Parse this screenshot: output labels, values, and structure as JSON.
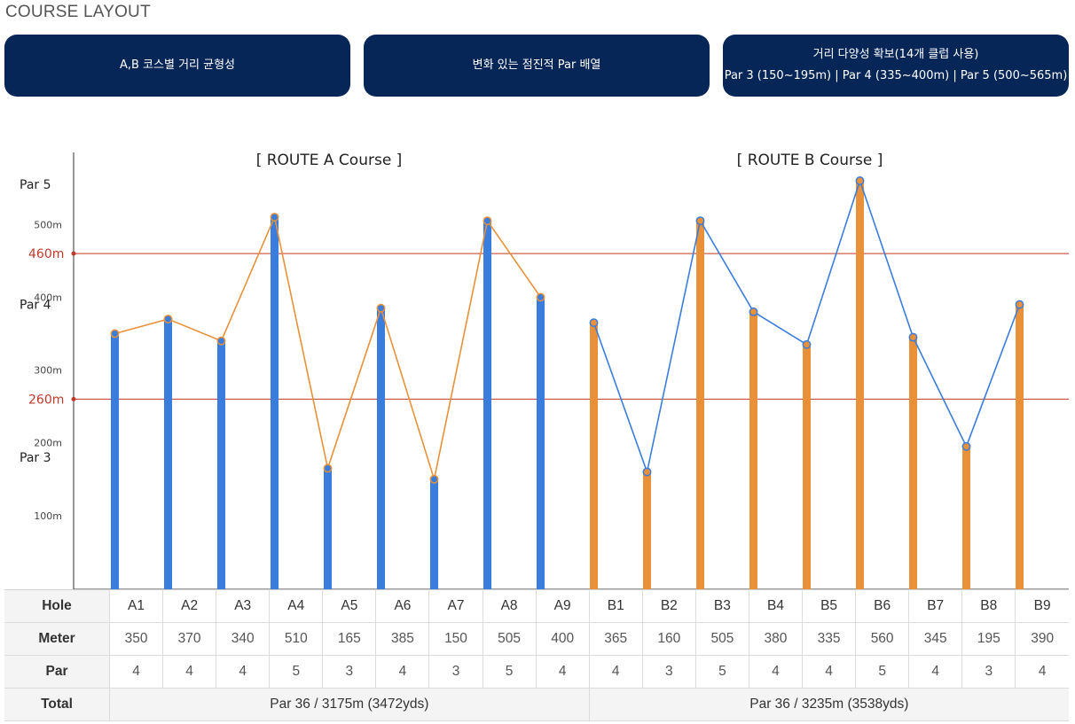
{
  "page_title": "COURSE LAYOUT",
  "cards": [
    {
      "lines": [
        "A,B 코스별 거리 균형성"
      ]
    },
    {
      "lines": [
        "변화 있는 점진적 Par 배열"
      ]
    },
    {
      "lines": [
        "거리 다양성 확보(14개 클럽 사용)",
        "Par 3 (150~195m) | Par 4 (335~400m) | Par 5 (500~565m)"
      ]
    }
  ],
  "colors": {
    "navy": "#072658",
    "blue": "#3b7ddd",
    "orange": "#e8913a",
    "ref_line": "#c0392b"
  },
  "chart_data": {
    "type": "bar",
    "titles": [
      "[ ROUTE A Course ]",
      "[ ROUTE B Course ]"
    ],
    "categories": [
      "A1",
      "A2",
      "A3",
      "A4",
      "A5",
      "A6",
      "A7",
      "A8",
      "A9",
      "B1",
      "B2",
      "B3",
      "B4",
      "B5",
      "B6",
      "B7",
      "B8",
      "B9"
    ],
    "series": [
      {
        "values": [
          350,
          370,
          340,
          510,
          165,
          385,
          150,
          505,
          400,
          null,
          null,
          null,
          null,
          null,
          null,
          null,
          null,
          null
        ],
        "bar_color": "#3b7ddd",
        "line_color": "#e8913a"
      },
      {
        "values": [
          null,
          null,
          null,
          null,
          null,
          null,
          null,
          null,
          null,
          365,
          160,
          505,
          380,
          335,
          560,
          345,
          195,
          390
        ],
        "bar_color": "#e8913a",
        "line_color": "#3b7ddd"
      }
    ],
    "ylim": [
      0,
      600
    ],
    "y_ticks": [
      {
        "value": 100,
        "label": "100m"
      },
      {
        "value": 200,
        "label": "200m"
      },
      {
        "value": 300,
        "label": "300m"
      },
      {
        "value": 400,
        "label": "400m"
      },
      {
        "value": 500,
        "label": "500m"
      }
    ],
    "par_labels": [
      {
        "value": 180,
        "label": "Par 3"
      },
      {
        "value": 390,
        "label": "Par 4"
      },
      {
        "value": 555,
        "label": "Par 5"
      }
    ],
    "reference_lines": [
      {
        "value": 260,
        "label": "260m"
      },
      {
        "value": 460,
        "label": "460m"
      }
    ]
  },
  "table": {
    "row_headers": {
      "hole": "Hole",
      "meter": "Meter",
      "par": "Par",
      "total": "Total"
    },
    "holes": [
      "A1",
      "A2",
      "A3",
      "A4",
      "A5",
      "A6",
      "A7",
      "A8",
      "A9",
      "B1",
      "B2",
      "B3",
      "B4",
      "B5",
      "B6",
      "B7",
      "B8",
      "B9"
    ],
    "meters": [
      "350",
      "370",
      "340",
      "510",
      "165",
      "385",
      "150",
      "505",
      "400",
      "365",
      "160",
      "505",
      "380",
      "335",
      "560",
      "345",
      "195",
      "390"
    ],
    "pars": [
      "4",
      "4",
      "4",
      "5",
      "3",
      "4",
      "3",
      "5",
      "4",
      "4",
      "3",
      "5",
      "4",
      "4",
      "5",
      "4",
      "3",
      "4"
    ],
    "totals": [
      "Par 36 / 3175m (3472yds)",
      "Par 36 / 3235m (3538yds)"
    ]
  }
}
